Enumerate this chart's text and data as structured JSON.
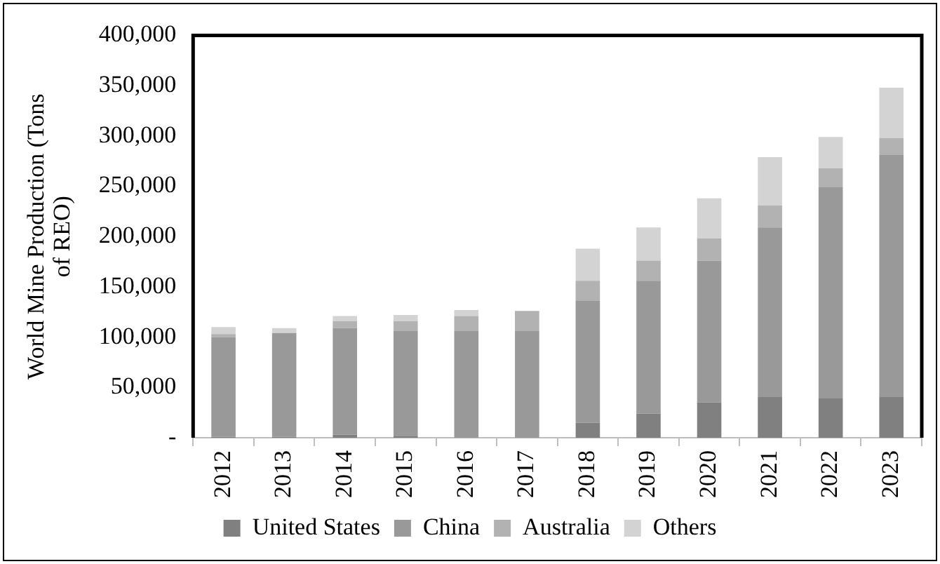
{
  "chart_data": {
    "type": "bar",
    "stacked": true,
    "ylabel": "World Mine Production (Tons of REO)",
    "categories": [
      "2012",
      "2013",
      "2014",
      "2015",
      "2016",
      "2017",
      "2018",
      "2019",
      "2020",
      "2021",
      "2022",
      "2023"
    ],
    "series": [
      {
        "name": "United States",
        "color": "#808080",
        "values": [
          1000,
          1000,
          3000,
          2000,
          0,
          0,
          15000,
          24000,
          35000,
          41000,
          39000,
          41000
        ]
      },
      {
        "name": "China",
        "color": "#999999",
        "values": [
          99000,
          103000,
          106000,
          104000,
          106000,
          106000,
          121000,
          132000,
          141000,
          168000,
          210000,
          240000
        ]
      },
      {
        "name": "Australia",
        "color": "#b2b2b2",
        "values": [
          3000,
          null,
          7000,
          10000,
          15000,
          20000,
          20000,
          20000,
          22000,
          22000,
          19000,
          17000
        ]
      },
      {
        "name": "Others",
        "color": "#d3d3d3",
        "values": [
          7000,
          5000,
          5000,
          6000,
          6000,
          null,
          32000,
          33000,
          40000,
          48000,
          31000,
          50000
        ]
      }
    ],
    "ylim": [
      0,
      400000
    ],
    "yticks": [
      {
        "value": 0,
        "label": "-"
      },
      {
        "value": 50000,
        "label": "50,000"
      },
      {
        "value": 100000,
        "label": "100,000"
      },
      {
        "value": 150000,
        "label": "150,000"
      },
      {
        "value": 200000,
        "label": "200,000"
      },
      {
        "value": 250000,
        "label": "250,000"
      },
      {
        "value": 300000,
        "label": "300,000"
      },
      {
        "value": 350000,
        "label": "350,000"
      },
      {
        "value": 400000,
        "label": "400,000"
      }
    ],
    "grid": false,
    "legend": "bottom"
  }
}
